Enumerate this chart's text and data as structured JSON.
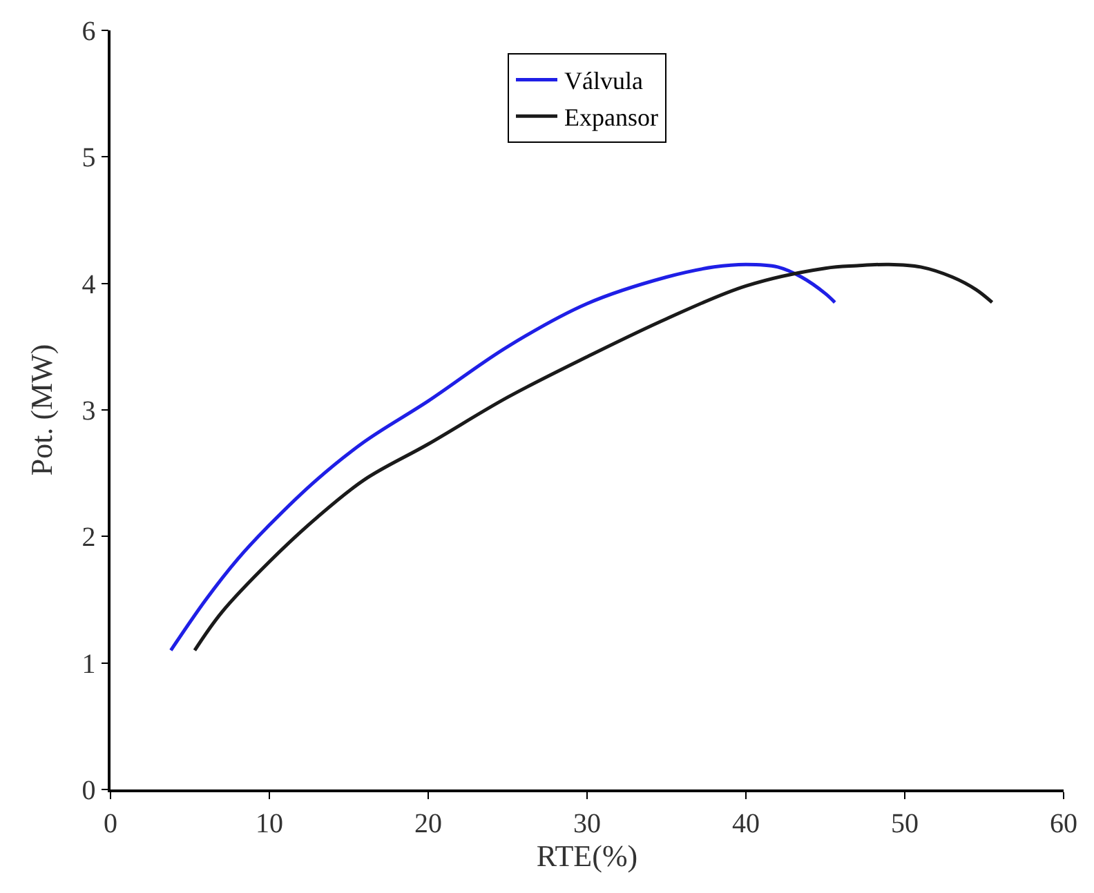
{
  "chart_data": {
    "type": "line",
    "xlabel": "RTE(%)",
    "ylabel": "Pot. (MW)",
    "xlim": [
      0,
      60
    ],
    "xticks": [
      0,
      10,
      20,
      30,
      40,
      50,
      60
    ],
    "ylim": [
      0,
      6
    ],
    "yticks": [
      0,
      1,
      2,
      3,
      4,
      5,
      6
    ],
    "legend": "top",
    "marker": "none",
    "line_style": "solid",
    "series": [
      {
        "name": "Válvula",
        "color": "#1f1fe6",
        "x": [
          3.8,
          6,
          8,
          10,
          13,
          16,
          20,
          25,
          30,
          35,
          38,
          40,
          42,
          43.5,
          45,
          45.6
        ],
        "values": [
          1.1,
          1.5,
          1.82,
          2.09,
          2.45,
          2.75,
          3.07,
          3.5,
          3.84,
          4.05,
          4.13,
          4.15,
          4.13,
          4.05,
          3.92,
          3.85
        ]
      },
      {
        "name": "Expansor",
        "color": "#1a1a1a",
        "x": [
          5.3,
          7,
          10,
          13,
          16,
          20,
          25,
          30,
          35,
          40,
          45,
          47,
          49,
          51,
          53,
          54.5,
          55.5
        ],
        "values": [
          1.1,
          1.4,
          1.8,
          2.15,
          2.45,
          2.73,
          3.1,
          3.42,
          3.72,
          3.98,
          4.12,
          4.14,
          4.15,
          4.13,
          4.05,
          3.95,
          3.85
        ]
      }
    ]
  }
}
